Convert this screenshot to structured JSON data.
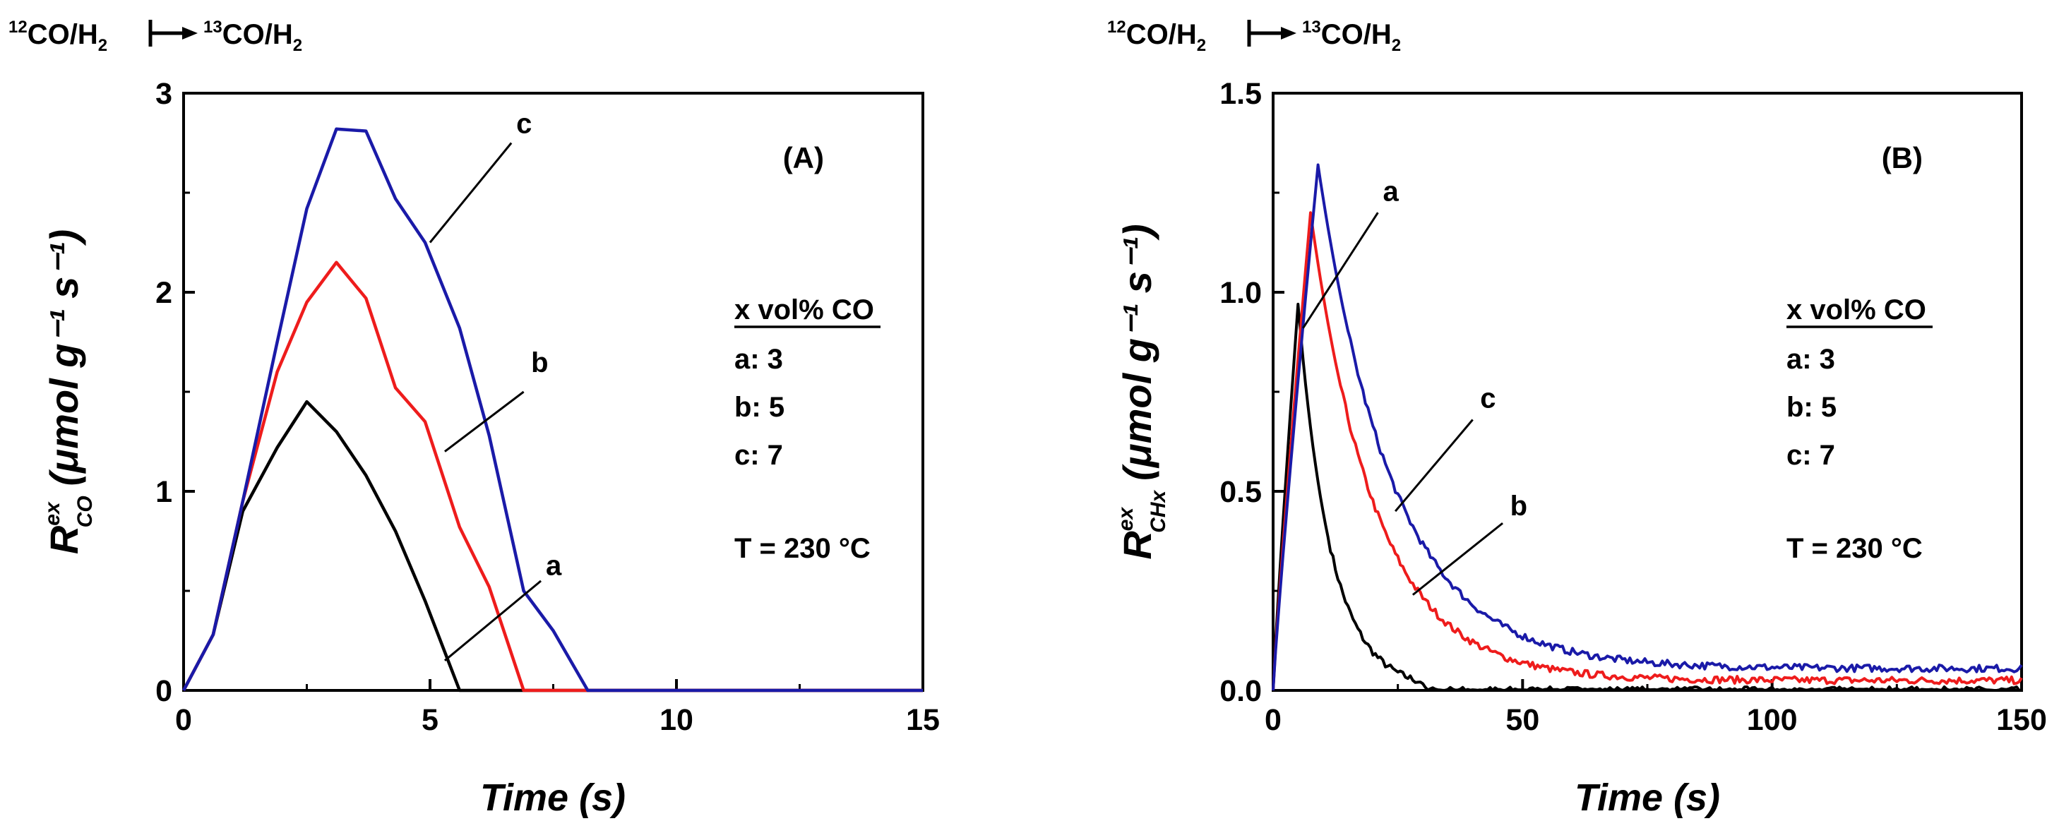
{
  "header": {
    "from_mass": "12",
    "from_rest": "CO/H",
    "from_sub": "2",
    "to_mass": "13",
    "to_rest": "CO/H",
    "to_sub": "2"
  },
  "colors": {
    "a": "#000000",
    "b": "#ee1c1c",
    "c": "#1a1aa8"
  },
  "chart_data": [
    {
      "type": "line",
      "panel_label": "(A)",
      "xlabel": "Time (s)",
      "ylabel": {
        "symbol": "R",
        "sup": "ex",
        "sub": "CO",
        "units": "(μmol g⁻¹ s⁻¹)"
      },
      "xlim": [
        0,
        15
      ],
      "ylim": [
        0,
        3
      ],
      "xticks": [
        0,
        5,
        10,
        15
      ],
      "yticks": [
        0,
        1,
        2,
        3
      ],
      "xtick_labels": [
        "0",
        "5",
        "10",
        "15"
      ],
      "ytick_labels": [
        "0",
        "1",
        "2",
        "3"
      ],
      "legend": {
        "title": "x vol% CO",
        "entries": [
          "a: 3",
          "b: 5",
          "c: 7"
        ]
      },
      "temperature": "T = 230 °C",
      "series": [
        {
          "name": "a",
          "x": [
            0,
            0.6,
            1.2,
            1.9,
            2.5,
            3.1,
            3.7,
            4.3,
            4.9,
            5.6,
            6.2,
            15
          ],
          "y": [
            0,
            0.28,
            0.9,
            1.22,
            1.45,
            1.3,
            1.08,
            0.8,
            0.45,
            0,
            0,
            0
          ]
        },
        {
          "name": "b",
          "x": [
            0,
            0.6,
            1.2,
            1.9,
            2.5,
            3.1,
            3.7,
            4.3,
            4.9,
            5.6,
            6.2,
            6.9,
            7.5,
            15
          ],
          "y": [
            0,
            0.28,
            0.95,
            1.6,
            1.95,
            2.15,
            1.97,
            1.52,
            1.35,
            0.82,
            0.52,
            0,
            0,
            0
          ]
        },
        {
          "name": "c",
          "x": [
            0,
            0.6,
            1.2,
            1.9,
            2.5,
            3.1,
            3.7,
            4.3,
            4.9,
            5.6,
            6.2,
            6.9,
            7.5,
            8.2,
            15
          ],
          "y": [
            0,
            0.28,
            0.95,
            1.75,
            2.42,
            2.82,
            2.81,
            2.47,
            2.25,
            1.82,
            1.28,
            0.5,
            0.3,
            0,
            0
          ]
        }
      ],
      "annotations": [
        {
          "label": "c"
        },
        {
          "label": "b"
        },
        {
          "label": "a"
        }
      ]
    },
    {
      "type": "line",
      "panel_label": "(B)",
      "xlabel": "Time (s)",
      "ylabel": {
        "symbol": "R",
        "sup": "ex",
        "sub": "CHx",
        "units": "(μmol g⁻¹ s⁻¹)"
      },
      "xlim": [
        0,
        150
      ],
      "ylim": [
        0,
        1.5
      ],
      "xticks": [
        0,
        50,
        100,
        150
      ],
      "yticks": [
        0,
        0.5,
        1.0,
        1.5
      ],
      "xtick_labels": [
        "0",
        "50",
        "100",
        "150"
      ],
      "ytick_labels": [
        "0.0",
        "0.5",
        "1.0",
        "1.5"
      ],
      "legend": {
        "title": "x vol% CO",
        "entries": [
          "a: 3",
          "b: 5",
          "c: 7"
        ]
      },
      "temperature": "T = 230 °C",
      "series": [
        {
          "name": "a",
          "peak_time": 5,
          "peak_value": 0.97,
          "tau": 6.5,
          "baseline": 0,
          "end_time": 150
        },
        {
          "name": "b",
          "peak_time": 7.5,
          "peak_value": 1.2,
          "tau": 13,
          "baseline": 0.025,
          "end_time": 150
        },
        {
          "name": "c",
          "peak_time": 9,
          "peak_value": 1.32,
          "tau": 15,
          "baseline": 0.055,
          "end_time": 150
        }
      ],
      "annotations": [
        {
          "label": "a"
        },
        {
          "label": "c"
        },
        {
          "label": "b"
        }
      ]
    }
  ]
}
